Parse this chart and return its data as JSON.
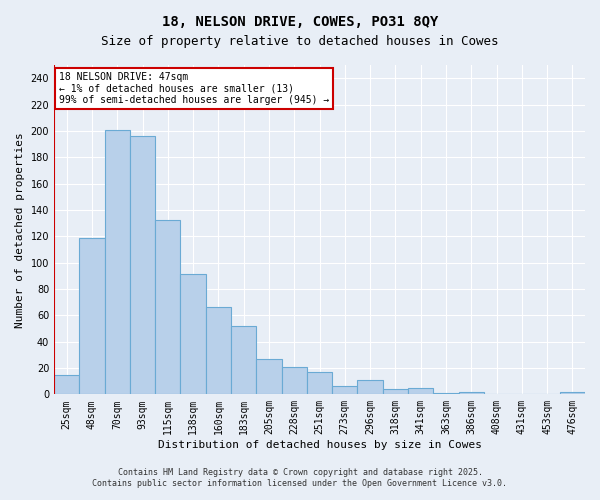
{
  "title1": "18, NELSON DRIVE, COWES, PO31 8QY",
  "title2": "Size of property relative to detached houses in Cowes",
  "xlabel": "Distribution of detached houses by size in Cowes",
  "ylabel": "Number of detached properties",
  "categories": [
    "25sqm",
    "48sqm",
    "70sqm",
    "93sqm",
    "115sqm",
    "138sqm",
    "160sqm",
    "183sqm",
    "205sqm",
    "228sqm",
    "251sqm",
    "273sqm",
    "296sqm",
    "318sqm",
    "341sqm",
    "363sqm",
    "386sqm",
    "408sqm",
    "431sqm",
    "453sqm",
    "476sqm"
  ],
  "values": [
    15,
    119,
    201,
    196,
    132,
    91,
    66,
    52,
    27,
    21,
    17,
    6,
    11,
    4,
    5,
    1,
    2,
    0,
    0,
    0,
    2
  ],
  "bar_color": "#b8d0ea",
  "bar_edge_color": "#6aaad4",
  "vline_x": -0.5,
  "vline_color": "#cc0000",
  "annotation_line1": "18 NELSON DRIVE: 47sqm",
  "annotation_line2": "← 1% of detached houses are smaller (13)",
  "annotation_line3": "99% of semi-detached houses are larger (945) →",
  "annotation_box_color": "#ffffff",
  "annotation_box_edge_color": "#cc0000",
  "ylim": [
    0,
    250
  ],
  "yticks": [
    0,
    20,
    40,
    60,
    80,
    100,
    120,
    140,
    160,
    180,
    200,
    220,
    240
  ],
  "bg_color": "#e8eef6",
  "footer_line1": "Contains HM Land Registry data © Crown copyright and database right 2025.",
  "footer_line2": "Contains public sector information licensed under the Open Government Licence v3.0.",
  "title1_fontsize": 10,
  "title2_fontsize": 9,
  "annotation_fontsize": 7,
  "tick_fontsize": 7,
  "xlabel_fontsize": 8,
  "ylabel_fontsize": 8,
  "footer_fontsize": 6
}
